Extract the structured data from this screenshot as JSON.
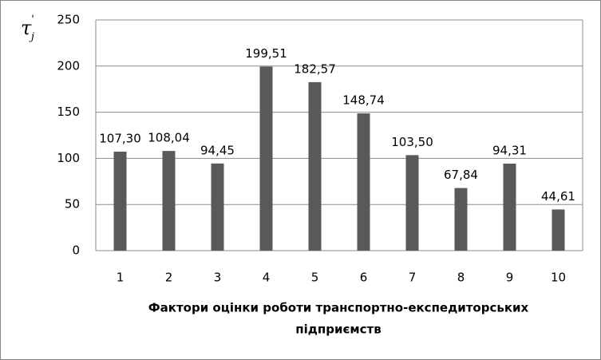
{
  "chart_data": {
    "type": "bar",
    "y_label": {
      "symbol": "τ",
      "superscript": "'",
      "subscript": "j"
    },
    "x_label": [
      "Фактори оцінки роботи транспортно-експедиторських",
      "підприємств"
    ],
    "categories": [
      "1",
      "2",
      "3",
      "4",
      "5",
      "6",
      "7",
      "8",
      "9",
      "10"
    ],
    "values": [
      107.3,
      108.04,
      94.45,
      199.51,
      182.57,
      148.74,
      103.5,
      67.84,
      94.31,
      44.61
    ],
    "value_labels": [
      "107,30",
      "108,04",
      "94,45",
      "199,51",
      "182,57",
      "148,74",
      "103,50",
      "67,84",
      "94,31",
      "44,61"
    ],
    "color": "#595959",
    "ylim": [
      0,
      250
    ],
    "yticks": [
      0,
      50,
      100,
      150,
      200,
      250
    ],
    "grid": true
  }
}
